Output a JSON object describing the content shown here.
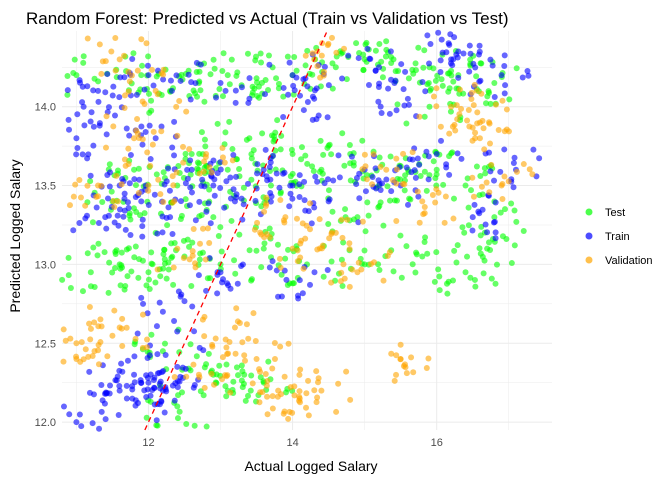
{
  "chart_data": {
    "type": "scatter",
    "title": "Random Forest: Predicted vs Actual (Train vs Validation vs Test)",
    "xlabel": "Actual Logged Salary",
    "ylabel": "Predicted Logged Salary",
    "xlim": [
      10.8,
      17.6
    ],
    "ylim": [
      11.95,
      14.48
    ],
    "xticks": [
      12,
      14,
      16
    ],
    "yticks": [
      12.0,
      12.5,
      13.0,
      13.5,
      14.0
    ],
    "ytick_labels": [
      "12.0",
      "12.5",
      "13.0",
      "13.5",
      "14.0"
    ],
    "grid": true,
    "legend_position": "right",
    "reference_line": {
      "type": "identity",
      "style": "dashed",
      "color": "#ff0000"
    },
    "series": [
      {
        "name": "Test",
        "color": "#00ff00",
        "points": [
          [
            11.0,
            14.2
          ],
          [
            11.9,
            14.2
          ],
          [
            12.3,
            14.1
          ],
          [
            12.7,
            14.15
          ],
          [
            13.1,
            14.2
          ],
          [
            13.5,
            14.18
          ],
          [
            14.0,
            14.2
          ],
          [
            14.6,
            14.25
          ],
          [
            15.0,
            14.3
          ],
          [
            15.4,
            14.3
          ],
          [
            15.9,
            14.25
          ],
          [
            16.3,
            14.2
          ],
          [
            16.8,
            14.15
          ],
          [
            11.5,
            13.4
          ],
          [
            11.8,
            13.6
          ],
          [
            12.1,
            13.2
          ],
          [
            12.4,
            13.5
          ],
          [
            12.6,
            13.7
          ],
          [
            12.9,
            13.3
          ],
          [
            13.1,
            13.6
          ],
          [
            13.4,
            13.8
          ],
          [
            13.7,
            13.5
          ],
          [
            14.0,
            13.7
          ],
          [
            14.4,
            13.6
          ],
          [
            14.8,
            13.7
          ],
          [
            15.2,
            13.5
          ],
          [
            15.6,
            13.6
          ],
          [
            16.0,
            13.6
          ],
          [
            16.4,
            13.5
          ],
          [
            16.8,
            13.3
          ],
          [
            11.6,
            13.0
          ],
          [
            12.0,
            12.95
          ],
          [
            12.5,
            13.05
          ],
          [
            13.0,
            13.0
          ],
          [
            13.6,
            13.1
          ],
          [
            14.2,
            13.0
          ],
          [
            15.0,
            13.0
          ],
          [
            15.8,
            13.05
          ],
          [
            16.4,
            12.95
          ],
          [
            12.2,
            12.45
          ],
          [
            12.4,
            12.1
          ],
          [
            12.9,
            12.3
          ],
          [
            13.1,
            12.2
          ],
          [
            13.6,
            12.25
          ],
          [
            16.7,
            13.1
          ],
          [
            11.2,
            12.95
          ],
          [
            14.9,
            13.3
          ],
          [
            15.9,
            14.0
          ]
        ]
      },
      {
        "name": "Train",
        "color": "#0000ff",
        "points": [
          [
            11.0,
            12.0
          ],
          [
            11.0,
            13.8
          ],
          [
            11.1,
            14.0
          ],
          [
            11.4,
            13.3
          ],
          [
            11.6,
            13.5
          ],
          [
            11.9,
            13.4
          ],
          [
            12.1,
            13.8
          ],
          [
            12.3,
            13.3
          ],
          [
            12.6,
            13.6
          ],
          [
            12.9,
            13.5
          ],
          [
            13.2,
            13.4
          ],
          [
            13.6,
            13.6
          ],
          [
            14.0,
            13.5
          ],
          [
            14.5,
            13.4
          ],
          [
            15.0,
            13.6
          ],
          [
            15.5,
            13.5
          ],
          [
            16.0,
            13.7
          ],
          [
            16.5,
            13.3
          ],
          [
            17.1,
            13.6
          ],
          [
            11.3,
            14.1
          ],
          [
            12.0,
            14.2
          ],
          [
            13.0,
            14.15
          ],
          [
            14.0,
            14.2
          ],
          [
            15.2,
            14.25
          ],
          [
            16.2,
            14.3
          ],
          [
            16.9,
            14.2
          ],
          [
            11.6,
            12.2
          ],
          [
            11.8,
            12.3
          ],
          [
            12.0,
            12.25
          ],
          [
            12.2,
            12.2
          ],
          [
            12.4,
            12.35
          ],
          [
            11.7,
            12.15
          ],
          [
            14.1,
            12.9
          ],
          [
            13.0,
            12.95
          ],
          [
            14.3,
            14.05
          ],
          [
            15.6,
            14.05
          ],
          [
            12.2,
            12.7
          ],
          [
            16.3,
            14.35
          ]
        ]
      },
      {
        "name": "Validation",
        "color": "#ffa500",
        "points": [
          [
            11.0,
            12.5
          ],
          [
            11.0,
            12.4
          ],
          [
            11.3,
            13.5
          ],
          [
            11.6,
            12.6
          ],
          [
            11.8,
            13.8
          ],
          [
            12.1,
            14.1
          ],
          [
            12.4,
            13.1
          ],
          [
            12.8,
            13.7
          ],
          [
            13.2,
            12.6
          ],
          [
            13.5,
            12.4
          ],
          [
            13.9,
            13.3
          ],
          [
            14.1,
            12.15
          ],
          [
            14.3,
            14.3
          ],
          [
            14.6,
            13.2
          ],
          [
            14.9,
            12.95
          ],
          [
            15.3,
            13.6
          ],
          [
            15.5,
            12.4
          ],
          [
            15.8,
            13.4
          ],
          [
            16.2,
            14.0
          ],
          [
            16.6,
            13.9
          ],
          [
            16.9,
            13.5
          ],
          [
            11.6,
            14.3
          ],
          [
            12.7,
            12.3
          ],
          [
            13.8,
            12.2
          ],
          [
            14.4,
            12.2
          ],
          [
            14.0,
            13.1
          ],
          [
            12.0,
            13.5
          ],
          [
            16.6,
            13.8
          ]
        ]
      }
    ]
  }
}
